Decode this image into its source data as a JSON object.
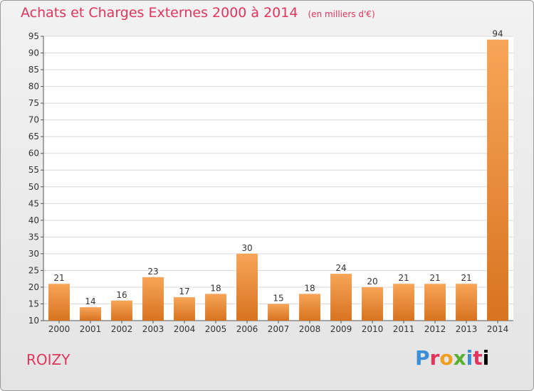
{
  "header": {
    "title": "Achats et Charges Externes 2000 à 2014",
    "unit": "(en milliers d'€)"
  },
  "footer": {
    "place": "ROIZY",
    "brand": "Proxiti"
  },
  "colors": {
    "bar_light": "#f7a559",
    "bar_dark": "#d8731f",
    "title": "#e0355c"
  },
  "chart_data": {
    "type": "bar",
    "categories": [
      "2000",
      "2001",
      "2002",
      "2003",
      "2004",
      "2005",
      "2006",
      "2007",
      "2008",
      "2009",
      "2010",
      "2011",
      "2012",
      "2013",
      "2014"
    ],
    "values": [
      21,
      14,
      16,
      23,
      17,
      18,
      30,
      15,
      18,
      24,
      20,
      21,
      21,
      21,
      94
    ],
    "ylim": [
      10,
      95
    ],
    "yticks": [
      10,
      15,
      20,
      25,
      30,
      35,
      40,
      45,
      50,
      55,
      60,
      65,
      70,
      75,
      80,
      85,
      90,
      95
    ],
    "grid": true
  }
}
